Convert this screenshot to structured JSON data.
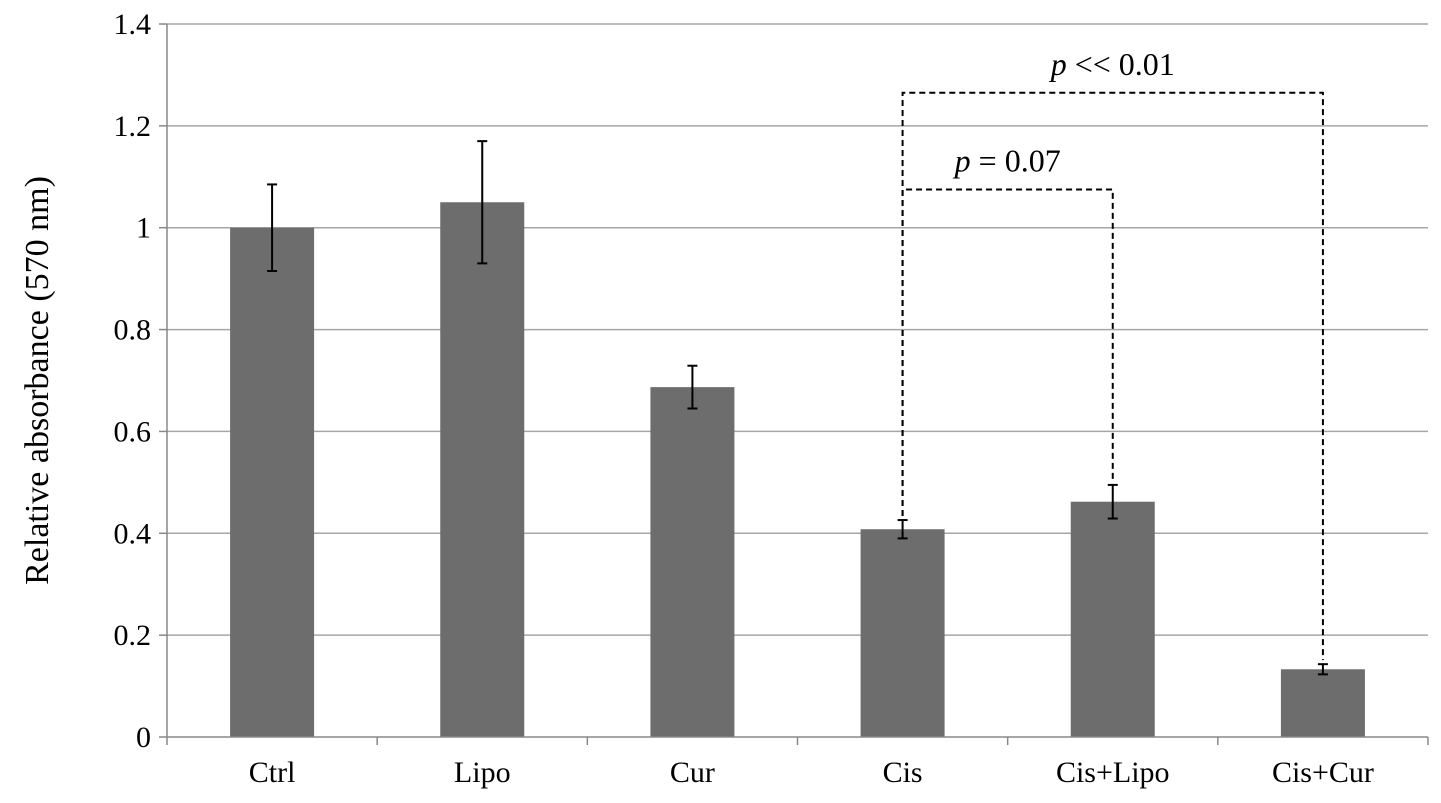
{
  "chart_data": {
    "type": "bar",
    "categories": [
      "Ctrl",
      "Lipo",
      "Cur",
      "Cis",
      "Cis+Lipo",
      "Cis+Cur"
    ],
    "values": [
      1.0,
      1.05,
      0.687,
      0.408,
      0.462,
      0.133
    ],
    "errors": [
      0.085,
      0.12,
      0.042,
      0.018,
      0.033,
      0.01
    ],
    "title": "",
    "xlabel": "",
    "ylabel": "Relative absorbance (570 nm)",
    "ylim": [
      0,
      1.4
    ],
    "yticks": [
      "0",
      "0.2",
      "0.4",
      "0.6",
      "0.8",
      "1",
      "1.2",
      "1.4"
    ],
    "grid": true,
    "bar_color": "#6d6d6d",
    "annotations": [
      {
        "p": "p",
        "text": " = 0.07",
        "from": "Cis",
        "to": "Cis+Lipo",
        "level": 1.075
      },
      {
        "p": "p",
        "text": " << 0.01",
        "from": "Cis",
        "to": "Cis+Cur",
        "level": 1.265
      }
    ]
  }
}
